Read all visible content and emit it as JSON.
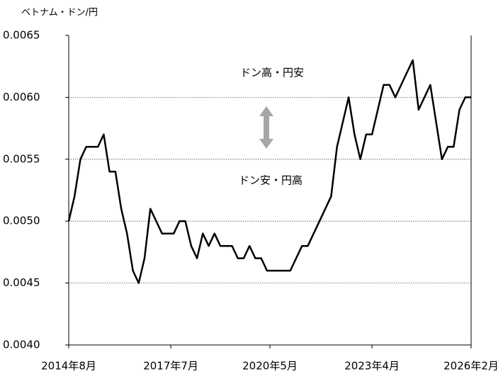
{
  "chart_data": {
    "type": "line",
    "y_axis_label": "ベトナム・ドン/円",
    "annotations": [
      "ドン高・円安",
      "ドン安・円高"
    ],
    "x": [
      "2014-08",
      "2014-10",
      "2014-12",
      "2015-02",
      "2015-04",
      "2015-06",
      "2015-08",
      "2015-10",
      "2015-12",
      "2016-02",
      "2016-04",
      "2016-06",
      "2016-08",
      "2016-10",
      "2016-12",
      "2017-02",
      "2017-04",
      "2017-06",
      "2017-08",
      "2017-10",
      "2017-12",
      "2018-02",
      "2018-04",
      "2018-06",
      "2018-08",
      "2018-10",
      "2018-12",
      "2019-02",
      "2019-04",
      "2019-06",
      "2019-08",
      "2019-10",
      "2019-12",
      "2020-02",
      "2020-04",
      "2020-06",
      "2020-08",
      "2020-10",
      "2020-12",
      "2021-02",
      "2021-04",
      "2021-06",
      "2021-08",
      "2021-10",
      "2021-12",
      "2022-02",
      "2022-04",
      "2022-06",
      "2022-08",
      "2022-10",
      "2022-12",
      "2023-02",
      "2023-04",
      "2023-06",
      "2023-08",
      "2023-10",
      "2023-12",
      "2024-02",
      "2024-04",
      "2024-06",
      "2024-08",
      "2024-10",
      "2024-12",
      "2025-02",
      "2025-04",
      "2025-06",
      "2025-08",
      "2025-10",
      "2025-12",
      "2026-02"
    ],
    "series": [
      {
        "color": "#000000",
        "values": [
          0.005,
          0.0052,
          0.0055,
          0.0056,
          0.0056,
          0.0056,
          0.0057,
          0.0054,
          0.0054,
          0.0051,
          0.0049,
          0.0046,
          0.0045,
          0.0047,
          0.0051,
          0.005,
          0.0049,
          0.0049,
          0.0049,
          0.005,
          0.005,
          0.0048,
          0.0047,
          0.0049,
          0.0048,
          0.0049,
          0.0048,
          0.0048,
          0.0048,
          0.0047,
          0.0047,
          0.0048,
          0.0047,
          0.0047,
          0.0046,
          0.0046,
          0.0046,
          0.0046,
          0.0046,
          0.0047,
          0.0048,
          0.0048,
          0.0049,
          0.005,
          0.0051,
          0.0052,
          0.0056,
          0.0058,
          0.006,
          0.0057,
          0.0055,
          0.0057,
          0.0057,
          0.0059,
          0.0061,
          0.0061,
          0.006,
          0.0061,
          0.0062,
          0.0063,
          0.0059,
          0.006,
          0.0061,
          0.0058,
          0.0055,
          0.0056,
          0.0056,
          0.0059,
          0.006,
          0.006
        ]
      }
    ],
    "xlim": [
      "2014-08",
      "2026-02"
    ],
    "xticks": [
      {
        "value": "2014-08",
        "label": "2014年8月"
      },
      {
        "value": "2017-07",
        "label": "2017年7月"
      },
      {
        "value": "2020-05",
        "label": "2020年5月"
      },
      {
        "value": "2023-04",
        "label": "2023年4月"
      },
      {
        "value": "2026-02",
        "label": "2026年2月"
      }
    ],
    "ylim": [
      0.004,
      0.0065
    ],
    "yticks": [
      {
        "value": 0.004,
        "label": "0.0040"
      },
      0.0045,
      {
        "value": 0.005,
        "label": "0.0050"
      },
      0.0055,
      {
        "value": 0.006,
        "label": "0.0060"
      },
      0.0065
    ],
    "grid": true
  }
}
